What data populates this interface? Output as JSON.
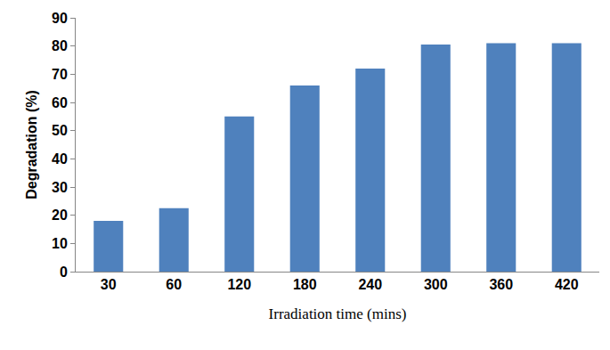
{
  "chart_data": {
    "type": "bar",
    "x_label": "Irradiation time (mins)",
    "y_label": "Degradation (%)",
    "categories": [
      "30",
      "60",
      "120",
      "180",
      "240",
      "300",
      "360",
      "420"
    ],
    "values": [
      18,
      22.5,
      55,
      66,
      72,
      80.5,
      81,
      81
    ],
    "color": "#4f81bd",
    "ylim": [
      0,
      90
    ],
    "yticks": [
      0,
      10,
      20,
      30,
      40,
      50,
      60,
      70,
      80,
      90
    ],
    "grid": false
  }
}
